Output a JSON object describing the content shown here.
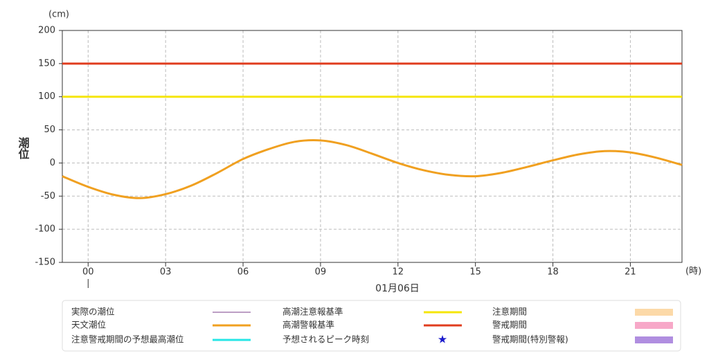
{
  "chart_data": {
    "type": "line",
    "y_label": "潮位",
    "y_unit": "(cm)",
    "x_unit": "(時)",
    "date_label": "01月06日",
    "x": [
      -1,
      0,
      1,
      2,
      3,
      4,
      5,
      6,
      7,
      8,
      9,
      10,
      11,
      12,
      13,
      14,
      15,
      16,
      17,
      18,
      19,
      20,
      21,
      22,
      23
    ],
    "series": [
      {
        "name": "天文潮位",
        "color": "#f0a020",
        "values": [
          -20,
          -36,
          -48,
          -53,
          -47,
          -34,
          -15,
          6,
          21,
          32,
          34,
          27,
          14,
          0,
          -11,
          -18,
          -20,
          -15,
          -6,
          4,
          13,
          18,
          16,
          8,
          -3
        ]
      }
    ],
    "reference_lines": [
      {
        "name": "高潮注意報基準",
        "color": "#f5e60a",
        "value": 100
      },
      {
        "name": "高潮警報基準",
        "color": "#e03c1e",
        "value": 150
      }
    ],
    "legend_items": [
      {
        "name": "実際の潮位",
        "color": "#7a3d8a",
        "symbol": "thin-line"
      },
      {
        "name": "注意警戒期間の予想最高潮位",
        "color": "#26e6e6",
        "symbol": "line"
      },
      {
        "name": "予想されるピーク時刻",
        "color": "#1a1acc",
        "symbol": "star"
      },
      {
        "name": "注意期間",
        "color": "#fcd9a8",
        "symbol": "rect"
      },
      {
        "name": "警戒期間",
        "color": "#f7a8c8",
        "symbol": "rect"
      },
      {
        "name": "警戒期間(特別警報)",
        "color": "#b08ee0",
        "symbol": "rect"
      }
    ],
    "xlim": [
      -1,
      23
    ],
    "ylim": [
      -150,
      200
    ],
    "xticks": [
      {
        "value": 0,
        "label": "00"
      },
      {
        "value": 3,
        "label": "03"
      },
      {
        "value": 6,
        "label": "06"
      },
      {
        "value": 9,
        "label": "09"
      },
      12,
      15,
      18,
      21
    ],
    "yticks": [
      -150,
      -100,
      -50,
      0,
      50,
      100,
      150,
      200
    ],
    "grid": true
  }
}
